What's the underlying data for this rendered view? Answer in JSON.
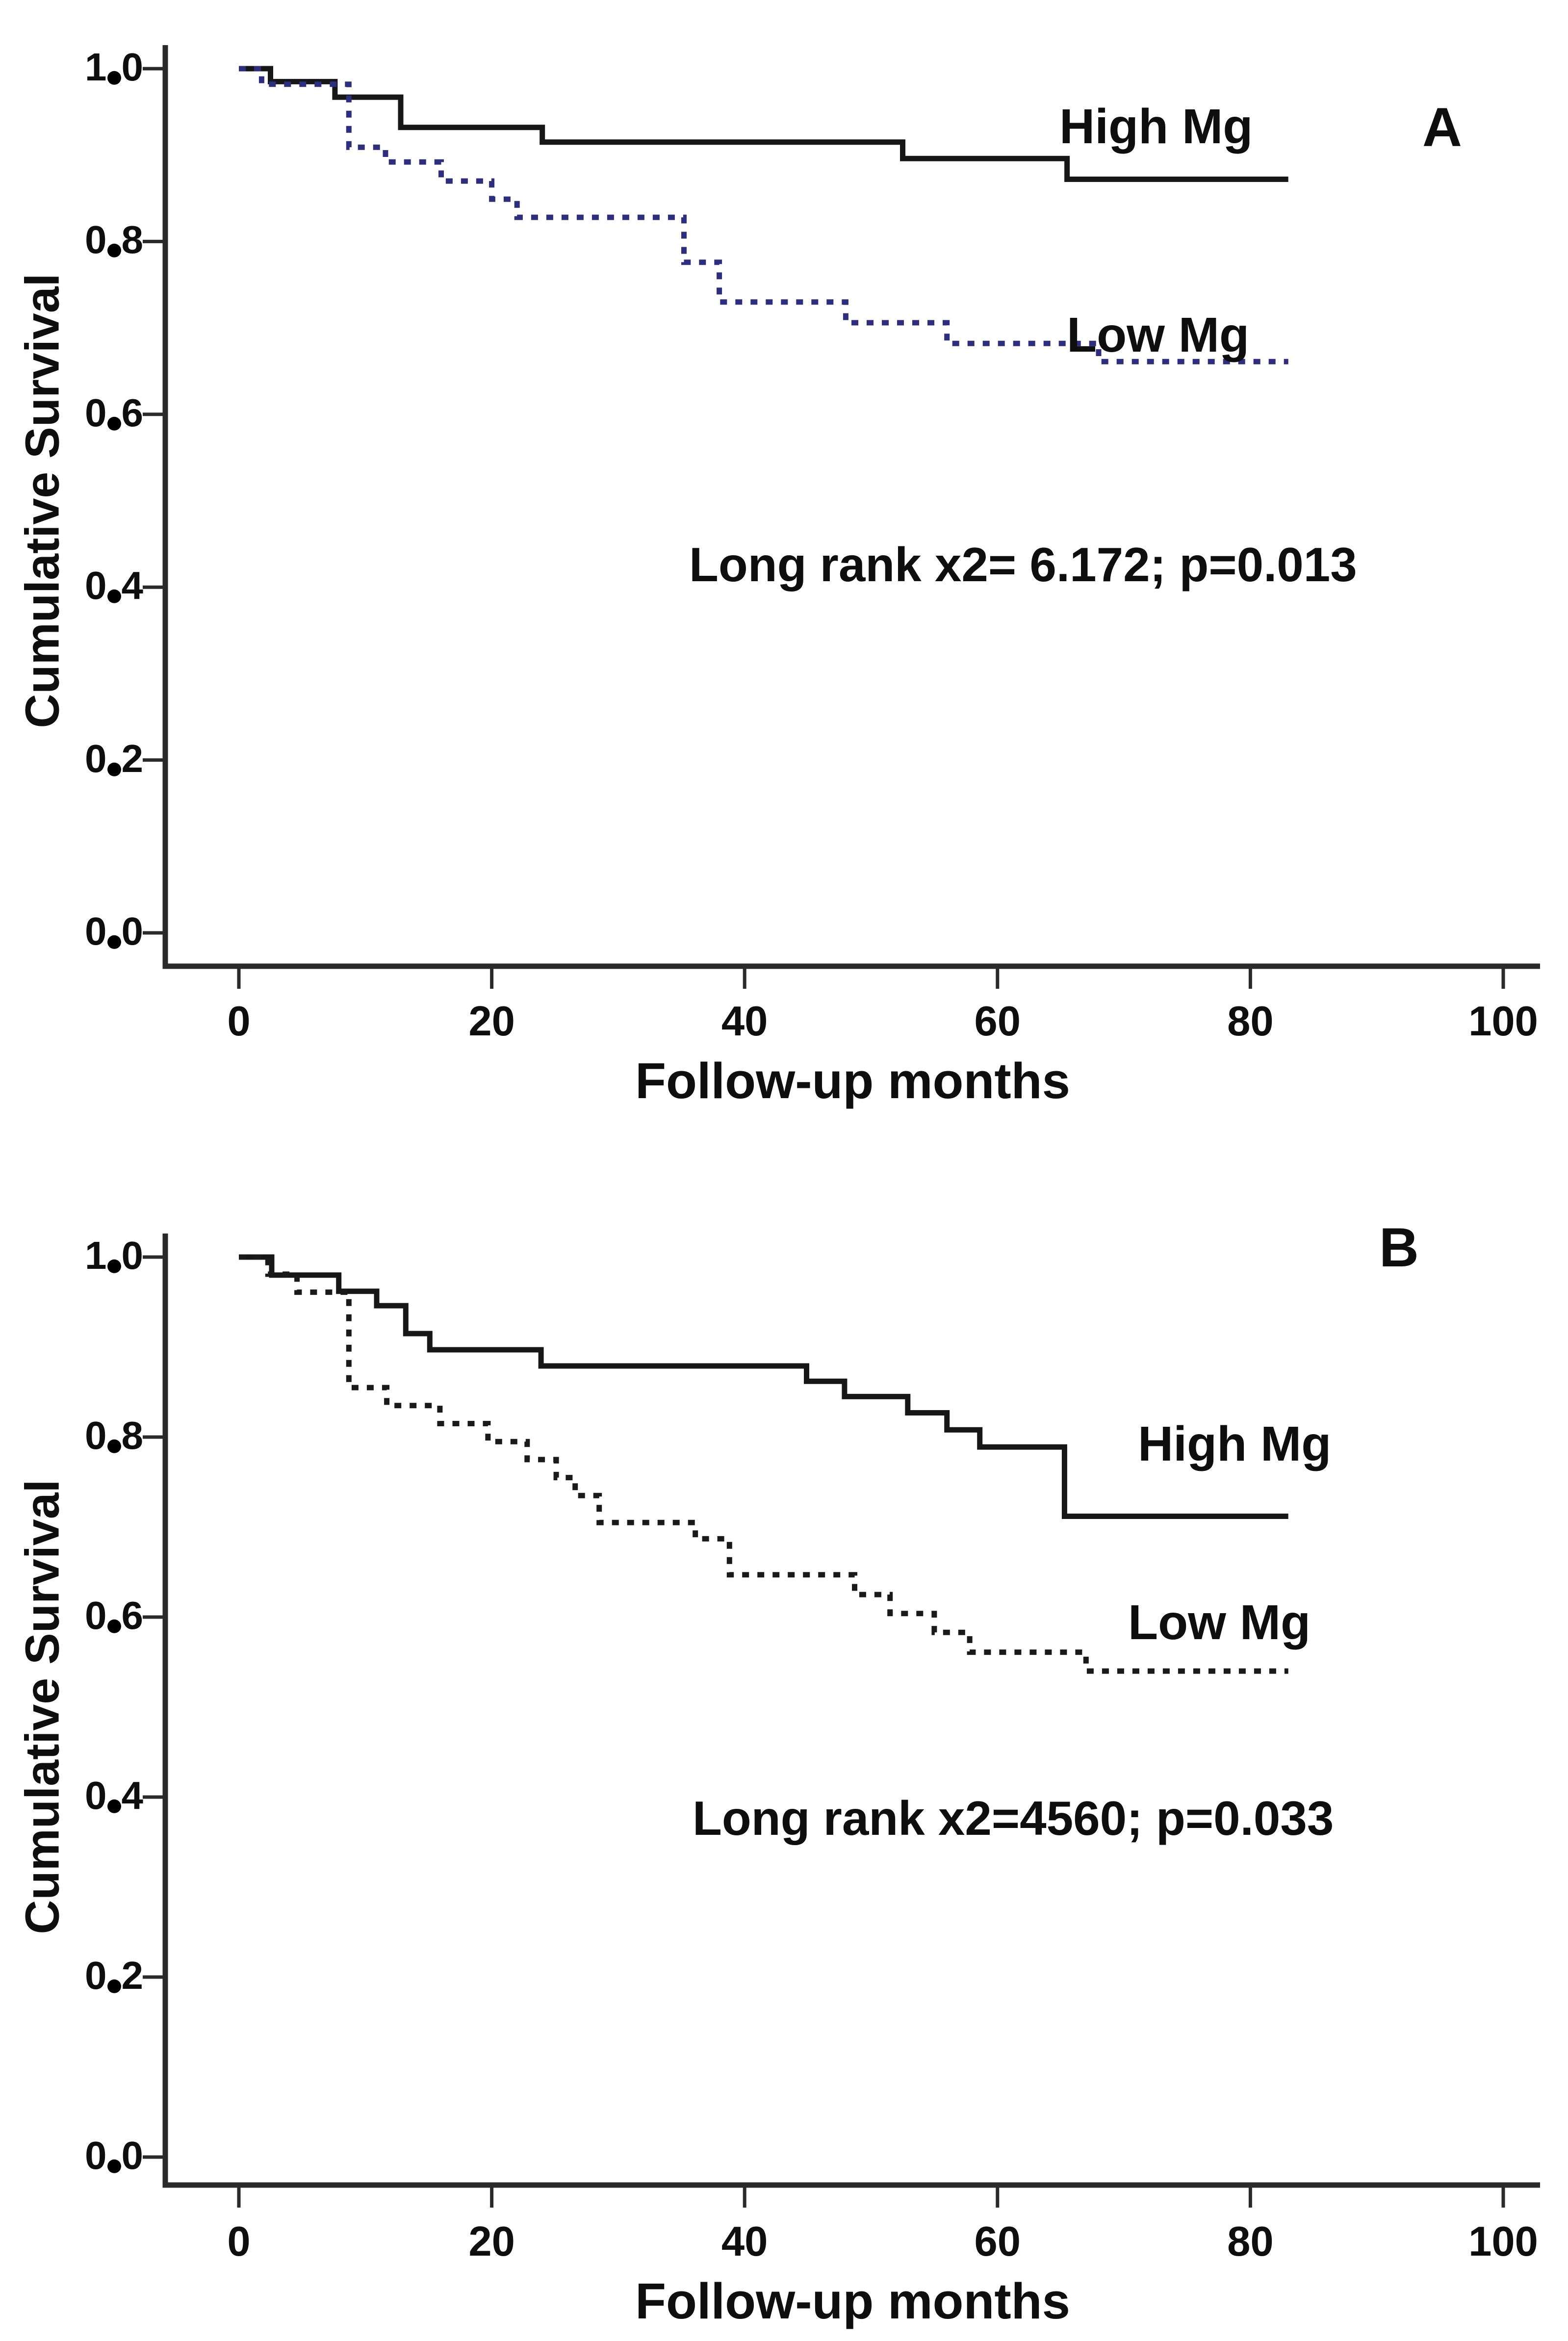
{
  "figure": {
    "background": "#ffffff"
  },
  "style": {
    "axis_color": "#2a2a2a",
    "text_color": "#0e0e0e",
    "solid_color": "#171717",
    "dotted_a_color": "#2e2e7e",
    "dotted_b_color": "#1a1a1a"
  },
  "chart_data": [
    {
      "type": "line",
      "subtype": "kaplan_meier_step",
      "panel_label": "A",
      "xlabel": "Follow-up months",
      "ylabel": "Cumulative Survival",
      "annotation": "Long rank x2= 6.172; p=0.013",
      "x_ticks": [
        0,
        20,
        40,
        60,
        80,
        100
      ],
      "y_ticks": [
        1.0,
        0.8,
        0.6,
        0.4,
        0.2,
        0.0
      ],
      "y_tick_labels": [
        "1.0",
        "0.8",
        "0.6",
        "0.4",
        "0.2",
        "0.0"
      ],
      "xlim": [
        -6,
        106
      ],
      "ylim": [
        -0.04,
        1.05
      ],
      "grid": false,
      "legend_position": "inline text labels",
      "series": [
        {
          "name": "High Mg",
          "line_style": "solid",
          "color": "#171717",
          "end_x": 83,
          "steps": [
            [
              0,
              1.0
            ],
            [
              2.5,
              0.985
            ],
            [
              7.6,
              0.967
            ],
            [
              12.8,
              0.932
            ],
            [
              24,
              0.915
            ],
            [
              52.5,
              0.896
            ],
            [
              65.5,
              0.872
            ]
          ]
        },
        {
          "name": "Low Mg",
          "line_style": "dotted",
          "color": "#2e2e7e",
          "end_x": 83,
          "steps": [
            [
              0,
              1.0
            ],
            [
              1.8,
              0.982
            ],
            [
              8.7,
              0.909
            ],
            [
              11.6,
              0.892
            ],
            [
              16,
              0.87
            ],
            [
              20,
              0.849
            ],
            [
              22,
              0.828
            ],
            [
              35.2,
              0.776
            ],
            [
              38,
              0.73
            ],
            [
              48,
              0.706
            ],
            [
              56,
              0.682
            ],
            [
              68,
              0.661
            ]
          ]
        }
      ]
    },
    {
      "type": "line",
      "subtype": "kaplan_meier_step",
      "panel_label": "B",
      "xlabel": "Follow-up months",
      "ylabel": "Cumulative Survival",
      "annotation": "Long rank x2=4560; p=0.033",
      "x_ticks": [
        0,
        20,
        40,
        60,
        80,
        100
      ],
      "y_ticks": [
        1.0,
        0.8,
        0.6,
        0.4,
        0.2,
        0.0
      ],
      "y_tick_labels": [
        "1.0",
        "0.8",
        "0.6",
        "0.4",
        "0.2",
        "0.0"
      ],
      "xlim": [
        -6,
        106
      ],
      "ylim": [
        -0.04,
        1.05
      ],
      "grid": false,
      "legend_position": "inline text labels",
      "series": [
        {
          "name": "High Mg",
          "line_style": "solid",
          "color": "#171717",
          "end_x": 83,
          "steps": [
            [
              0,
              1.0
            ],
            [
              2.6,
              0.98
            ],
            [
              7.9,
              0.962
            ],
            [
              10.9,
              0.946
            ],
            [
              13.2,
              0.915
            ],
            [
              15.1,
              0.897
            ],
            [
              23.9,
              0.879
            ],
            [
              44.9,
              0.862
            ],
            [
              47.9,
              0.845
            ],
            [
              52.9,
              0.827
            ],
            [
              56,
              0.808
            ],
            [
              58.6,
              0.789
            ],
            [
              65.3,
              0.712
            ]
          ]
        },
        {
          "name": "Low Mg",
          "line_style": "dotted",
          "color": "#1a1a1a",
          "end_x": 83,
          "steps": [
            [
              0,
              1.0
            ],
            [
              2.3,
              0.981
            ],
            [
              4.6,
              0.961
            ],
            [
              8.7,
              0.855
            ],
            [
              11.7,
              0.835
            ],
            [
              15.9,
              0.815
            ],
            [
              19.7,
              0.795
            ],
            [
              22.8,
              0.775
            ],
            [
              25.1,
              0.755
            ],
            [
              26.6,
              0.735
            ],
            [
              28.5,
              0.705
            ],
            [
              36.1,
              0.687
            ],
            [
              38.8,
              0.647
            ],
            [
              48.7,
              0.625
            ],
            [
              51.5,
              0.604
            ],
            [
              55,
              0.583
            ],
            [
              57.8,
              0.561
            ],
            [
              67,
              0.54
            ]
          ]
        }
      ]
    }
  ]
}
